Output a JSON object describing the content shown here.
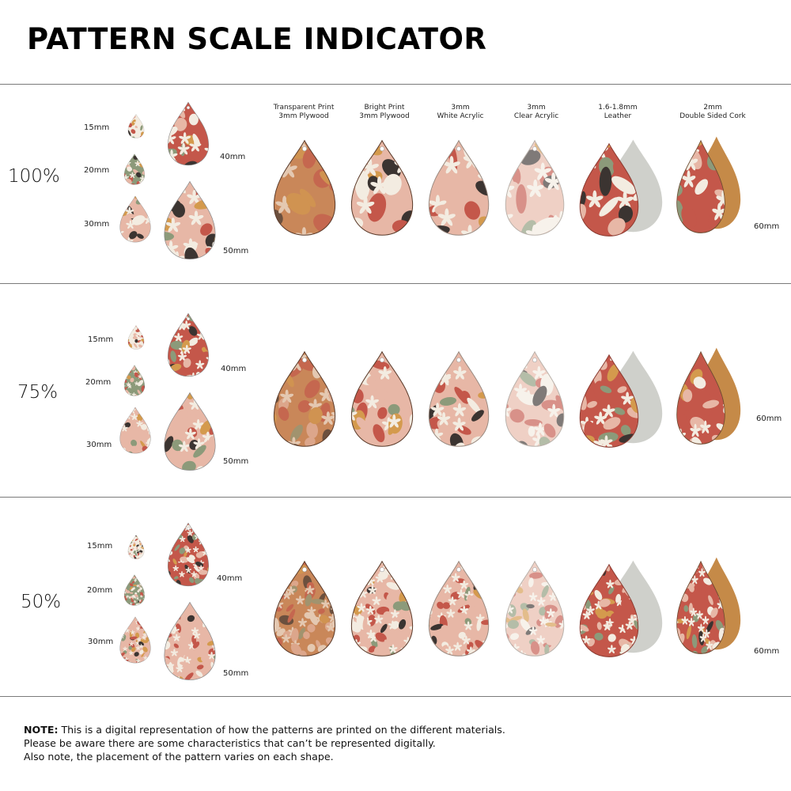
{
  "title": "PATTERN SCALE INDICATOR",
  "materials": [
    {
      "line1": "Transparent Print",
      "line2": "3mm Plywood"
    },
    {
      "line1": "Bright Print",
      "line2": "3mm Plywood"
    },
    {
      "line1": "3mm",
      "line2": "White Acrylic"
    },
    {
      "line1": "3mm",
      "line2": "Clear Acrylic"
    },
    {
      "line1": "1.6-1.8mm",
      "line2": "Leather"
    },
    {
      "line1": "2mm",
      "line2": "Double Sided Cork"
    }
  ],
  "sections": [
    {
      "scale": "100%",
      "sizes": {
        "s15": "15mm",
        "s20": "20mm",
        "s30": "30mm",
        "s40": "40mm",
        "s50": "50mm",
        "s60": "60mm"
      }
    },
    {
      "scale": "75%",
      "sizes": {
        "s15": "15mm",
        "s20": "20mm",
        "s30": "30mm",
        "s40": "40mm",
        "s50": "50mm",
        "s60": "60mm"
      }
    },
    {
      "scale": "50%",
      "sizes": {
        "s15": "15mm",
        "s20": "20mm",
        "s30": "30mm",
        "s40": "40mm",
        "s50": "50mm",
        "s60": "60mm"
      }
    }
  ],
  "note": {
    "label": "NOTE:",
    "line1": " This is a digital representation of how the patterns are printed on the different materials.",
    "line2": "Please be aware there are some characteristics that can’t be represented digitally.",
    "line3": "Also note, the placement of the pattern varies on each shape."
  },
  "colors": {
    "terracotta": "#c4574a",
    "blush": "#e7b7a6",
    "mustard": "#d49a4d",
    "sage": "#8c9a7a",
    "cream": "#f3ece1",
    "charcoal": "#3b3431",
    "plywood": "#c9875a",
    "leather_back": "#cfd0cb",
    "cork": "#c58a48"
  }
}
